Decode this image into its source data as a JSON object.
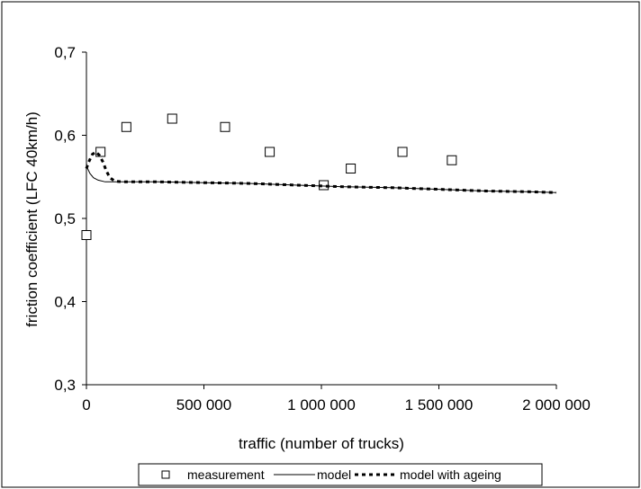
{
  "chart_data": {
    "type": "line",
    "xlabel": "traffic (number of trucks)",
    "ylabel": "friction coefficient (LFC 40km/h)",
    "xlim": [
      0,
      2000000
    ],
    "ylim": [
      0.3,
      0.7
    ],
    "x_ticks": [
      {
        "value": 0,
        "label": "0"
      },
      {
        "value": 500000,
        "label": "500 000"
      },
      {
        "value": 1000000,
        "label": "1 000 000"
      },
      {
        "value": 1500000,
        "label": "1 500 000"
      },
      {
        "value": 2000000,
        "label": "2 000 000"
      }
    ],
    "y_ticks": [
      {
        "value": 0.3,
        "label": "0,3"
      },
      {
        "value": 0.4,
        "label": "0,4"
      },
      {
        "value": 0.5,
        "label": "0,5"
      },
      {
        "value": 0.6,
        "label": "0,6"
      },
      {
        "value": 0.7,
        "label": "0,7"
      }
    ],
    "grid": false,
    "legend_position": "bottom",
    "series": [
      {
        "name": "measurement",
        "style": "square-markers",
        "x": [
          0,
          60000,
          170000,
          365000,
          590000,
          780000,
          1010000,
          1125000,
          1345000,
          1555000
        ],
        "y": [
          0.48,
          0.58,
          0.61,
          0.62,
          0.61,
          0.58,
          0.54,
          0.56,
          0.58,
          0.57
        ]
      },
      {
        "name": "model",
        "style": "solid",
        "x": [
          0,
          5000,
          15000,
          30000,
          50000,
          80000,
          120000,
          200000,
          300000,
          500000,
          700000,
          900000,
          1100000,
          1300000,
          1500000,
          1700000,
          1900000,
          2000000
        ],
        "y": [
          0.566,
          0.56,
          0.554,
          0.549,
          0.546,
          0.544,
          0.544,
          0.544,
          0.544,
          0.543,
          0.542,
          0.54,
          0.538,
          0.537,
          0.535,
          0.533,
          0.532,
          0.531
        ]
      },
      {
        "name": "model with ageing",
        "style": "dashed",
        "x": [
          0,
          10000,
          25000,
          40000,
          55000,
          70000,
          85000,
          100000,
          120000,
          150000,
          200000,
          300000,
          500000,
          700000,
          900000,
          1100000,
          1300000,
          1500000,
          1700000,
          1900000,
          2000000
        ],
        "y": [
          0.56,
          0.568,
          0.577,
          0.58,
          0.576,
          0.568,
          0.557,
          0.549,
          0.545,
          0.544,
          0.544,
          0.544,
          0.543,
          0.542,
          0.54,
          0.538,
          0.537,
          0.535,
          0.533,
          0.532,
          0.531
        ]
      }
    ]
  }
}
